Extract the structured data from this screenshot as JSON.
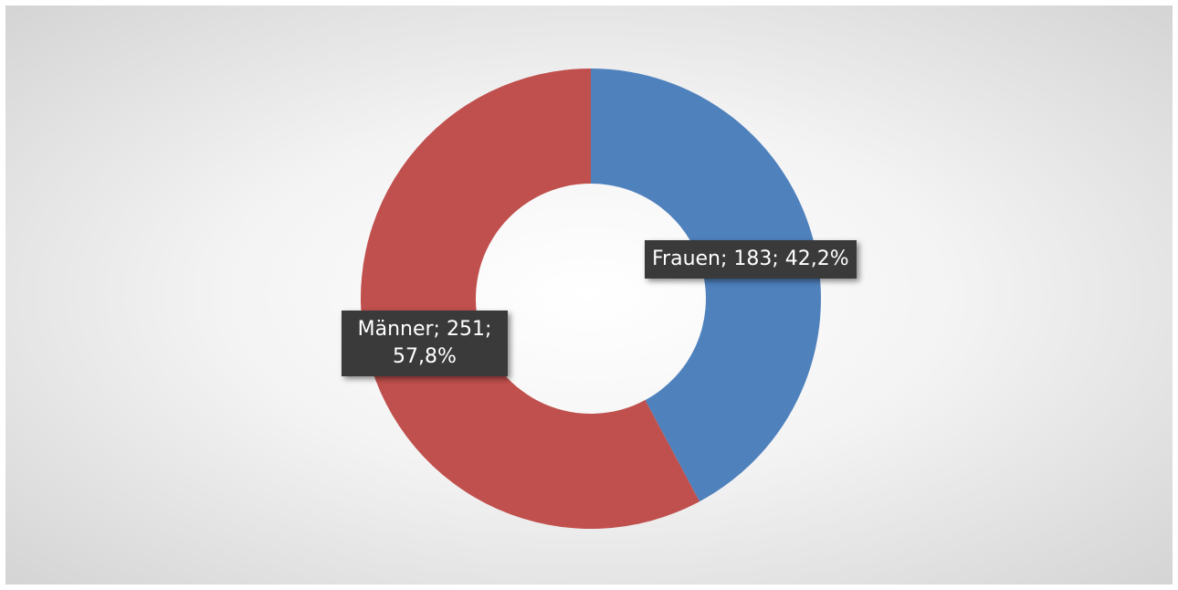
{
  "chart_data": {
    "type": "donut",
    "categories": [
      "Frauen",
      "Männer"
    ],
    "values": [
      183,
      251
    ],
    "value_labels": [
      "Frauen; 183; 42,2%",
      "Männer; 251; 57,8%"
    ],
    "colors": [
      "#4f81bd",
      "#c0504d"
    ]
  }
}
